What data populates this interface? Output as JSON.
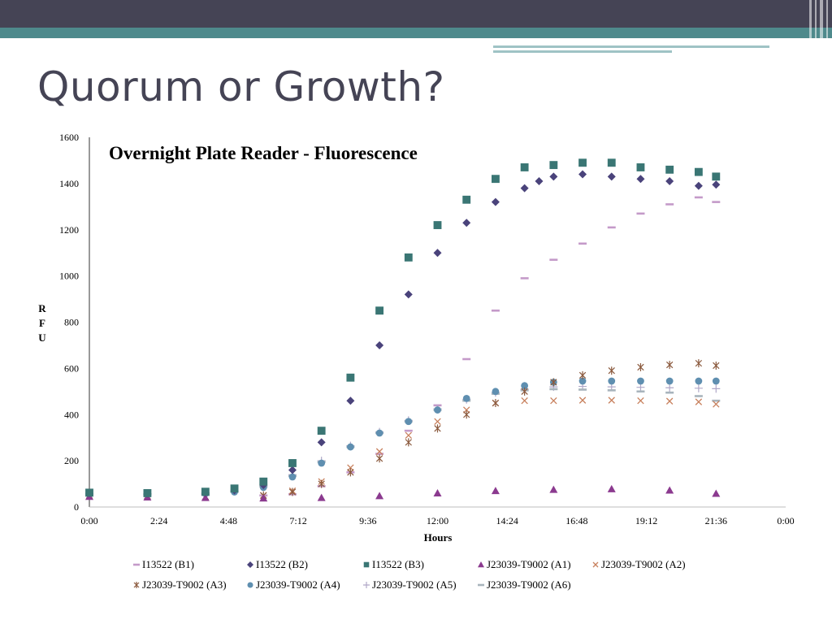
{
  "slide": {
    "title": "Quorum or Growth?"
  },
  "chart_data": {
    "type": "scatter",
    "title": "Overnight Plate Reader - Fluorescence",
    "xlabel": "Hours",
    "ylabel": "RFU",
    "xlim": [
      0,
      24
    ],
    "ylim": [
      0,
      1600
    ],
    "x_ticks": [
      "0:00",
      "2:24",
      "4:48",
      "7:12",
      "9:36",
      "12:00",
      "14:24",
      "16:48",
      "19:12",
      "21:36",
      "0:00"
    ],
    "y_ticks": [
      "0",
      "200",
      "400",
      "600",
      "800",
      "1000",
      "1200",
      "1400",
      "1600"
    ],
    "grid": false,
    "legend_position": "bottom",
    "series": [
      {
        "name": "I13522 (B1)",
        "color": "#c49ac9",
        "marker": "dash",
        "x": [
          0,
          2,
          4,
          6,
          7,
          8,
          9,
          10,
          11,
          12,
          13,
          14,
          15,
          16,
          17,
          18,
          19,
          20,
          21,
          21.6
        ],
        "y": [
          55,
          55,
          52,
          50,
          55,
          90,
          150,
          230,
          330,
          440,
          640,
          850,
          990,
          1070,
          1140,
          1210,
          1270,
          1310,
          1340,
          1320
        ]
      },
      {
        "name": "I13522 (B2)",
        "color": "#4a437b",
        "marker": "diamond",
        "x": [
          0,
          2,
          4,
          5,
          6,
          7,
          8,
          9,
          10,
          11,
          12,
          13,
          14,
          15,
          15.5,
          16,
          17,
          18,
          19,
          20,
          21,
          21.6
        ],
        "y": [
          60,
          58,
          62,
          72,
          95,
          160,
          280,
          460,
          700,
          920,
          1100,
          1230,
          1320,
          1380,
          1410,
          1430,
          1440,
          1430,
          1420,
          1410,
          1390,
          1395
        ]
      },
      {
        "name": "I13522 (B3)",
        "color": "#3a7674",
        "marker": "square",
        "x": [
          0,
          2,
          4,
          5,
          6,
          7,
          8,
          9,
          10,
          11,
          12,
          13,
          14,
          15,
          16,
          17,
          18,
          19,
          20,
          21,
          21.6
        ],
        "y": [
          62,
          60,
          66,
          80,
          110,
          190,
          330,
          560,
          850,
          1080,
          1220,
          1330,
          1420,
          1470,
          1480,
          1490,
          1490,
          1470,
          1460,
          1450,
          1430
        ]
      },
      {
        "name": "J23039-T9002 (A1)",
        "color": "#8b3a8f",
        "marker": "triangle",
        "x": [
          0,
          2,
          4,
          6,
          8,
          10,
          12,
          14,
          16,
          18,
          20,
          21.6
        ],
        "y": [
          45,
          42,
          40,
          38,
          40,
          48,
          60,
          70,
          75,
          78,
          72,
          58
        ]
      },
      {
        "name": "J23039-T9002 (A2)",
        "color": "#c8815e",
        "marker": "x",
        "x": [
          0,
          2,
          4,
          6,
          7,
          8,
          9,
          10,
          11,
          12,
          13,
          14,
          15,
          16,
          17,
          18,
          19,
          20,
          21,
          21.6
        ],
        "y": [
          50,
          48,
          45,
          50,
          70,
          110,
          170,
          240,
          310,
          370,
          420,
          450,
          460,
          460,
          462,
          462,
          460,
          458,
          455,
          445
        ]
      },
      {
        "name": "J23039-T9002 (A3)",
        "color": "#8b5a3e",
        "marker": "star",
        "x": [
          0,
          2,
          4,
          6,
          7,
          8,
          9,
          10,
          11,
          12,
          13,
          14,
          15,
          16,
          17,
          18,
          19,
          20,
          21,
          21.6
        ],
        "y": [
          50,
          48,
          45,
          50,
          65,
          100,
          150,
          210,
          280,
          340,
          400,
          450,
          500,
          540,
          570,
          590,
          605,
          615,
          622,
          612
        ]
      },
      {
        "name": "J23039-T9002 (A4)",
        "color": "#5f8fb0",
        "marker": "circle",
        "x": [
          0,
          2,
          4,
          5,
          6,
          7,
          8,
          9,
          10,
          11,
          12,
          13,
          14,
          15,
          16,
          17,
          18,
          19,
          20,
          21,
          21.6
        ],
        "y": [
          55,
          55,
          58,
          65,
          85,
          130,
          190,
          260,
          320,
          370,
          420,
          470,
          500,
          525,
          540,
          545,
          545,
          545,
          545,
          545,
          545
        ]
      },
      {
        "name": "J23039-T9002 (A5)",
        "color": "#b0a8c8",
        "marker": "plus",
        "x": [
          0,
          2,
          4,
          5,
          6,
          7,
          8,
          9,
          10,
          11,
          12,
          13,
          14,
          15,
          16,
          17,
          18,
          19,
          20,
          21,
          21.6
        ],
        "y": [
          55,
          55,
          58,
          68,
          90,
          140,
          200,
          265,
          325,
          375,
          425,
          465,
          495,
          510,
          520,
          522,
          520,
          518,
          516,
          514,
          512
        ]
      },
      {
        "name": "J23039-T9002 (A6)",
        "color": "#a8b4bc",
        "marker": "dash",
        "x": [
          0,
          2,
          4,
          5,
          6,
          7,
          8,
          9,
          10,
          11,
          12,
          13,
          14,
          15,
          16,
          17,
          18,
          19,
          20,
          21,
          21.6
        ],
        "y": [
          55,
          55,
          58,
          66,
          88,
          135,
          195,
          260,
          320,
          370,
          420,
          460,
          490,
          505,
          510,
          508,
          505,
          500,
          495,
          480,
          460
        ]
      }
    ]
  }
}
